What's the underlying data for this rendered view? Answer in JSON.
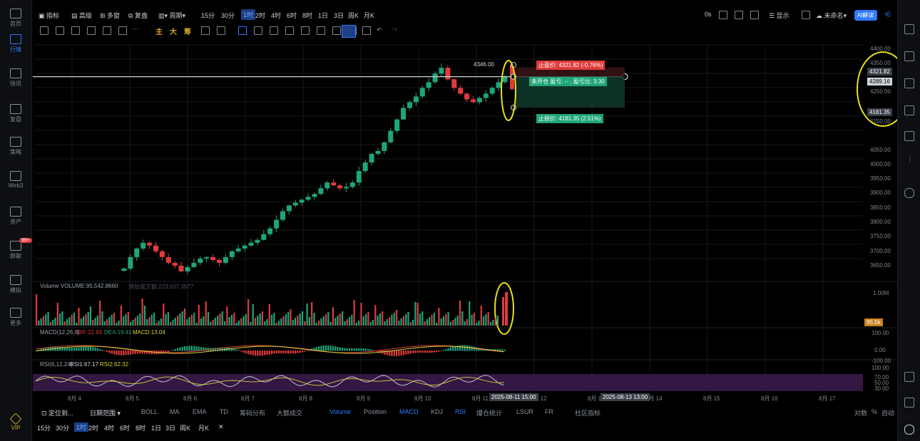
{
  "left_rail": [
    {
      "label": "首页",
      "icon": "home-icon"
    },
    {
      "label": "行情",
      "icon": "chart-bar-icon",
      "active": true
    },
    {
      "label": "快讯",
      "icon": "news-icon"
    },
    {
      "label": "复盘",
      "icon": "review-icon"
    },
    {
      "label": "策略",
      "icon": "strategy-icon"
    },
    {
      "label": "Web3",
      "icon": "web3-icon"
    },
    {
      "label": "资产",
      "icon": "wallet-icon"
    },
    {
      "label": "群聊",
      "icon": "chat-icon",
      "badge": "99+"
    },
    {
      "label": "模拟",
      "icon": "simulate-icon"
    },
    {
      "label": "更多",
      "icon": "more-grid-icon"
    },
    {
      "label": "VIP",
      "icon": "vip-icon"
    }
  ],
  "toolbar": {
    "indicator": "指标",
    "advanced": "高级",
    "multi": "多窗",
    "replay": "复盘",
    "period": "周期",
    "intervals": [
      "15分",
      "30分",
      "1时",
      "2时",
      "4时",
      "6时",
      "8时",
      "1日",
      "3日",
      "周K",
      "月K"
    ],
    "active_interval": "1时",
    "countdown": "0s",
    "display": "显示",
    "account": "未命名",
    "ai": "AI解读"
  },
  "drawing_tools": {
    "main": "主",
    "big": "大",
    "chip": "筹"
  },
  "price_axis": {
    "ticks": [
      "4400.00",
      "4350.00",
      "4321.82",
      "4289.16",
      "4250.00",
      "4181.35",
      "4150.00",
      "4050.00",
      "4000.00",
      "3950.00",
      "3900.00",
      "3850.00",
      "3800.00",
      "3750.00",
      "3700.00",
      "3650.00"
    ],
    "current": "4289.16",
    "take_profit": "4321.82",
    "stop_loss": "4181.35"
  },
  "annotations": {
    "high": "4346.00",
    "take_profit_label": "止盈价: 4321.82 (-0.76%)",
    "position_label": "未开仓  盈亏: -- ,  盈亏比: 3.30",
    "stop_loss_label": "止损价: 4181.35 (2.51%)"
  },
  "volume_panel": {
    "title": "Volume  VOLUME:95,542.8660",
    "turnover": "预估成交额:223,637.3977",
    "axis_top": "1.00M",
    "current": "95.5k"
  },
  "macd_panel": {
    "title": "MACD(12,26,9)",
    "dif": "DIF:22.93",
    "dea": "DEA:19.41",
    "macd": "MACD:13.04",
    "axis": [
      "100.00",
      "0.00",
      "-100.00"
    ]
  },
  "rsi_panel": {
    "title": "RSI(6,12,24)",
    "rsi1": "RSI1:67.17",
    "rsi2": "RSI2:62.32",
    "axis": [
      "100.00",
      "70.00",
      "50.00",
      "30.00"
    ]
  },
  "time_axis": {
    "ticks": [
      "8月 4",
      "8月 5",
      "8月 6",
      "8月 7",
      "8月 8",
      "8月 9",
      "8月 10",
      "8月 11",
      "8月 12",
      "8月 13",
      "8月 14",
      "8月 15",
      "8月 16",
      "8月 17"
    ],
    "cursor_left": "2025-08-11 15:00",
    "cursor_right": "2025-08-13 13:00"
  },
  "bottom_tabs": {
    "locate": "定位到...",
    "range": "日期范围",
    "indicators": [
      "BOLL",
      "MA",
      "EMA",
      "TD",
      "筹码分布",
      "大额成交"
    ],
    "sub_indicators": [
      "Volume",
      "Position",
      "MACD",
      "KDJ",
      "RSI",
      "爆仓统计",
      "LSUR",
      "FR",
      "社区指标"
    ],
    "active_sub": [
      "Volume",
      "MACD",
      "RSI"
    ],
    "right": [
      "对数",
      "%",
      "自动"
    ]
  },
  "bottom_intervals": [
    "15分",
    "30分",
    "1时",
    "2时",
    "4时",
    "6时",
    "8时",
    "1日",
    "3日",
    "周K",
    "月K"
  ],
  "colors": {
    "up": "#1fa57a",
    "down": "#e03b3b",
    "accent": "#2f7bff",
    "highlight": "#e8e01a",
    "rsi_band": "#3a1a4a"
  },
  "chart_data": {
    "type": "candlestick",
    "ylim": [
      3600,
      4400
    ],
    "close_series": [
      3620,
      3660,
      3690,
      3710,
      3700,
      3680,
      3660,
      3640,
      3630,
      3610,
      3625,
      3640,
      3655,
      3660,
      3650,
      3640,
      3660,
      3680,
      3690,
      3700,
      3710,
      3720,
      3740,
      3760,
      3790,
      3820,
      3840,
      3850,
      3860,
      3870,
      3880,
      3900,
      3920,
      3910,
      3900,
      3905,
      3920,
      3960,
      3990,
      4020,
      4030,
      4060,
      4100,
      4140,
      4180,
      4200,
      4220,
      4250,
      4270,
      4300,
      4320,
      4280,
      4250,
      4230,
      4210,
      4200,
      4215,
      4230,
      4250,
      4270,
      4289.16
    ],
    "last_close": 4289.16,
    "high": 4346.0
  }
}
